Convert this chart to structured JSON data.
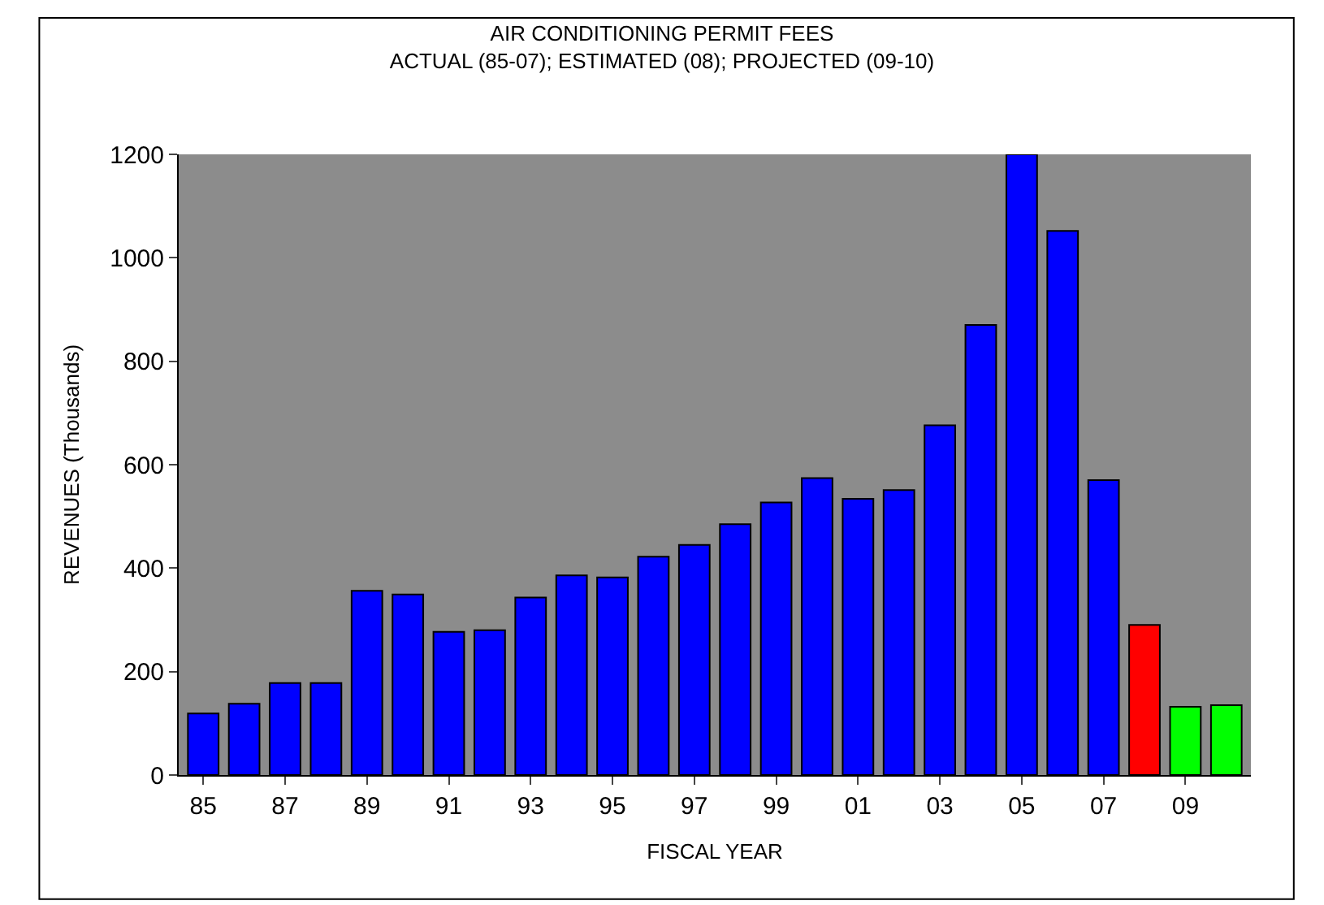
{
  "chart_data": {
    "type": "bar",
    "title": "AIR CONDITIONING PERMIT FEES",
    "subtitle": "ACTUAL (85-07); ESTIMATED (08); PROJECTED (09-10)",
    "xlabel": "FISCAL YEAR",
    "ylabel": "REVENUES (Thousands)",
    "categories": [
      "85",
      null,
      "87",
      null,
      "89",
      null,
      "91",
      null,
      "93",
      null,
      "95",
      null,
      "97",
      null,
      "99",
      null,
      "01",
      null,
      "03",
      null,
      "05",
      null,
      "07",
      null,
      "09",
      null
    ],
    "values": [
      119,
      138,
      178,
      178,
      356,
      349,
      277,
      280,
      343,
      386,
      382,
      422,
      445,
      485,
      527,
      574,
      534,
      551,
      676,
      870,
      1200,
      1052,
      570,
      290,
      132,
      135
    ],
    "colors": [
      "#0000ff",
      "#0000ff",
      "#0000ff",
      "#0000ff",
      "#0000ff",
      "#0000ff",
      "#0000ff",
      "#0000ff",
      "#0000ff",
      "#0000ff",
      "#0000ff",
      "#0000ff",
      "#0000ff",
      "#0000ff",
      "#0000ff",
      "#0000ff",
      "#0000ff",
      "#0000ff",
      "#0000ff",
      "#0000ff",
      "#0000ff",
      "#0000ff",
      "#0000ff",
      "#ff0000",
      "#00ff00",
      "#00ff00"
    ],
    "ylim": [
      0,
      1200
    ],
    "yticks": [
      0,
      200,
      400,
      600,
      800,
      1000,
      1200
    ],
    "grid": false
  }
}
